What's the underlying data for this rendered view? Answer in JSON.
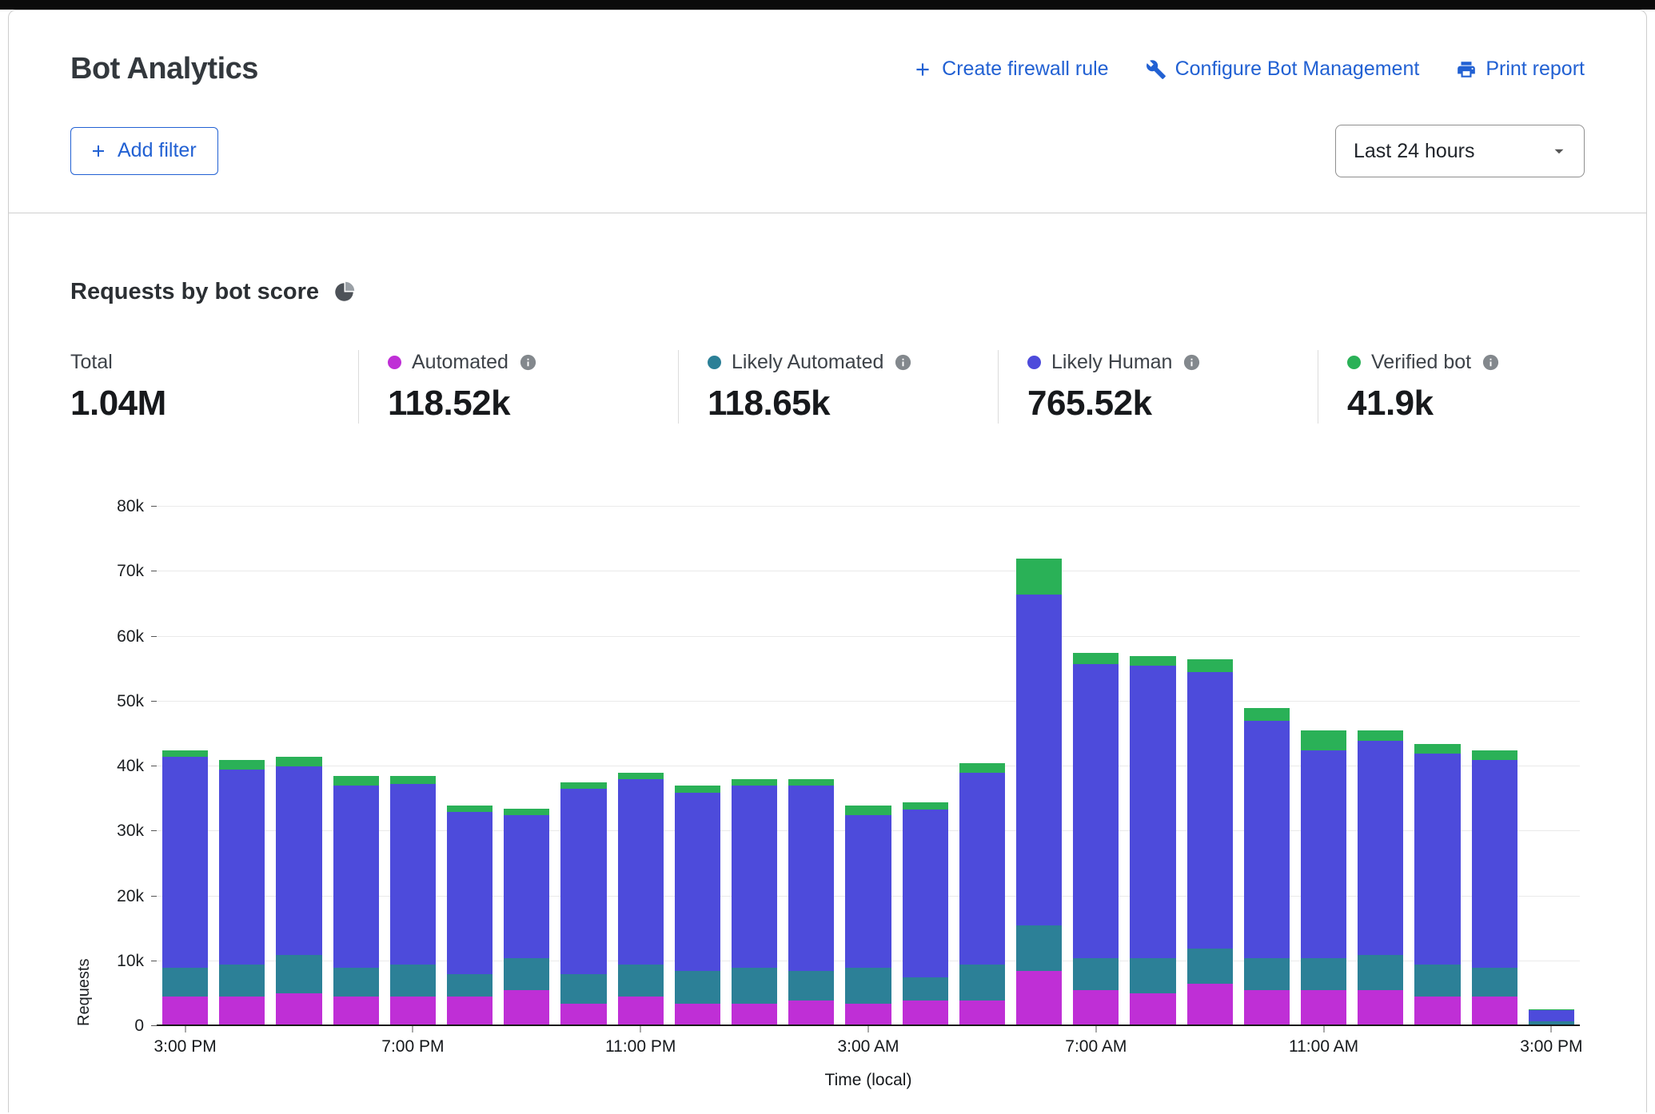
{
  "header": {
    "title": "Bot Analytics",
    "actions": [
      {
        "icon": "plus-icon",
        "label": "Create firewall rule"
      },
      {
        "icon": "wrench-icon",
        "label": "Configure Bot Management"
      },
      {
        "icon": "printer-icon",
        "label": "Print report"
      }
    ],
    "add_filter_label": "Add filter",
    "time_range_selected": "Last 24 hours"
  },
  "section": {
    "title": "Requests by bot score"
  },
  "stats": [
    {
      "label": "Total",
      "value": "1.04M",
      "color": null
    },
    {
      "label": "Automated",
      "value": "118.52k",
      "color": "#bf2fd6"
    },
    {
      "label": "Likely Automated",
      "value": "118.65k",
      "color": "#2c8097"
    },
    {
      "label": "Likely Human",
      "value": "765.52k",
      "color": "#4d4bdb"
    },
    {
      "label": "Verified bot",
      "value": "41.9k",
      "color": "#2ab157"
    }
  ],
  "chart_data": {
    "type": "bar",
    "stacked": true,
    "title": "Requests by bot score",
    "xlabel": "Time (local)",
    "ylabel": "Requests",
    "unit": "thousands of requests",
    "ylim": [
      0,
      80
    ],
    "yticks": [
      0,
      10,
      20,
      30,
      40,
      50,
      60,
      70,
      80
    ],
    "ytick_labels": [
      "0",
      "10k",
      "20k",
      "30k",
      "40k",
      "50k",
      "60k",
      "70k",
      "80k"
    ],
    "xtick_labels": [
      "3:00 PM",
      "7:00 PM",
      "11:00 PM",
      "3:00 AM",
      "7:00 AM",
      "11:00 AM",
      "3:00 PM"
    ],
    "xtick_bar_indexes": [
      0,
      4,
      8,
      12,
      16,
      20,
      24
    ],
    "bar_count": 25,
    "series": [
      {
        "name": "Automated",
        "color": "#bf2fd6",
        "values": [
          4.5,
          4.5,
          5.0,
          4.5,
          4.5,
          4.5,
          5.5,
          3.5,
          4.5,
          3.5,
          3.5,
          4.0,
          3.5,
          4.0,
          4.0,
          8.5,
          5.5,
          5.0,
          6.5,
          5.5,
          5.5,
          5.5,
          4.5,
          4.5,
          0.3
        ]
      },
      {
        "name": "Likely Automated",
        "color": "#2c8097",
        "values": [
          4.5,
          5.0,
          6.0,
          4.5,
          5.0,
          3.5,
          5.0,
          4.5,
          5.0,
          5.0,
          5.5,
          4.5,
          5.5,
          3.5,
          5.5,
          7.0,
          5.0,
          5.5,
          5.5,
          5.0,
          5.0,
          5.5,
          5.0,
          4.5,
          0.4
        ]
      },
      {
        "name": "Likely Human",
        "color": "#4d4bdb",
        "values": [
          32.5,
          30.0,
          29.0,
          28.0,
          27.8,
          25.0,
          22.0,
          28.5,
          28.5,
          27.5,
          28.0,
          28.5,
          23.5,
          25.8,
          29.5,
          51.0,
          45.2,
          45.0,
          42.5,
          36.5,
          32.0,
          33.0,
          32.5,
          32.0,
          1.8
        ]
      },
      {
        "name": "Verified bot",
        "color": "#2ab157",
        "values": [
          1.0,
          1.5,
          1.5,
          1.5,
          1.2,
          1.0,
          1.0,
          1.0,
          1.0,
          1.0,
          1.0,
          1.0,
          1.5,
          1.2,
          1.5,
          5.5,
          1.8,
          1.5,
          2.0,
          2.0,
          3.0,
          1.5,
          1.5,
          1.5,
          0.1
        ]
      }
    ],
    "legend_position": "top",
    "grid": true
  }
}
